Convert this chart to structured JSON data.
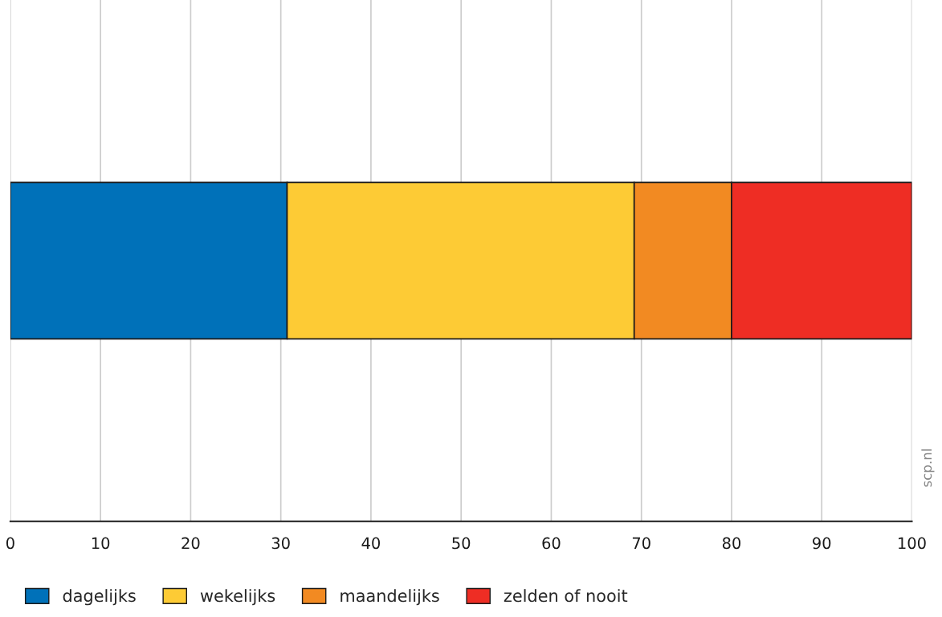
{
  "chart_data": {
    "type": "bar",
    "orientation": "horizontal",
    "stacked": true,
    "categories": [
      null
    ],
    "series": [
      {
        "name": "dagelijks",
        "color": "#0071b9",
        "values": [
          30.7
        ]
      },
      {
        "name": "wekelijks",
        "color": "#fdcb35",
        "values": [
          38.5
        ]
      },
      {
        "name": "maandelijks",
        "color": "#f28a22",
        "values": [
          10.8
        ]
      },
      {
        "name": "zelden of nooit",
        "color": "#ee2d24",
        "values": [
          20.0
        ]
      }
    ],
    "xlim": [
      0,
      100
    ],
    "xticks": [
      0,
      10,
      20,
      30,
      40,
      50,
      60,
      70,
      80,
      90,
      100
    ],
    "grid": "x",
    "legend": "bottom left",
    "tick_labels": "x",
    "annotations": [
      "scp.nl"
    ]
  }
}
